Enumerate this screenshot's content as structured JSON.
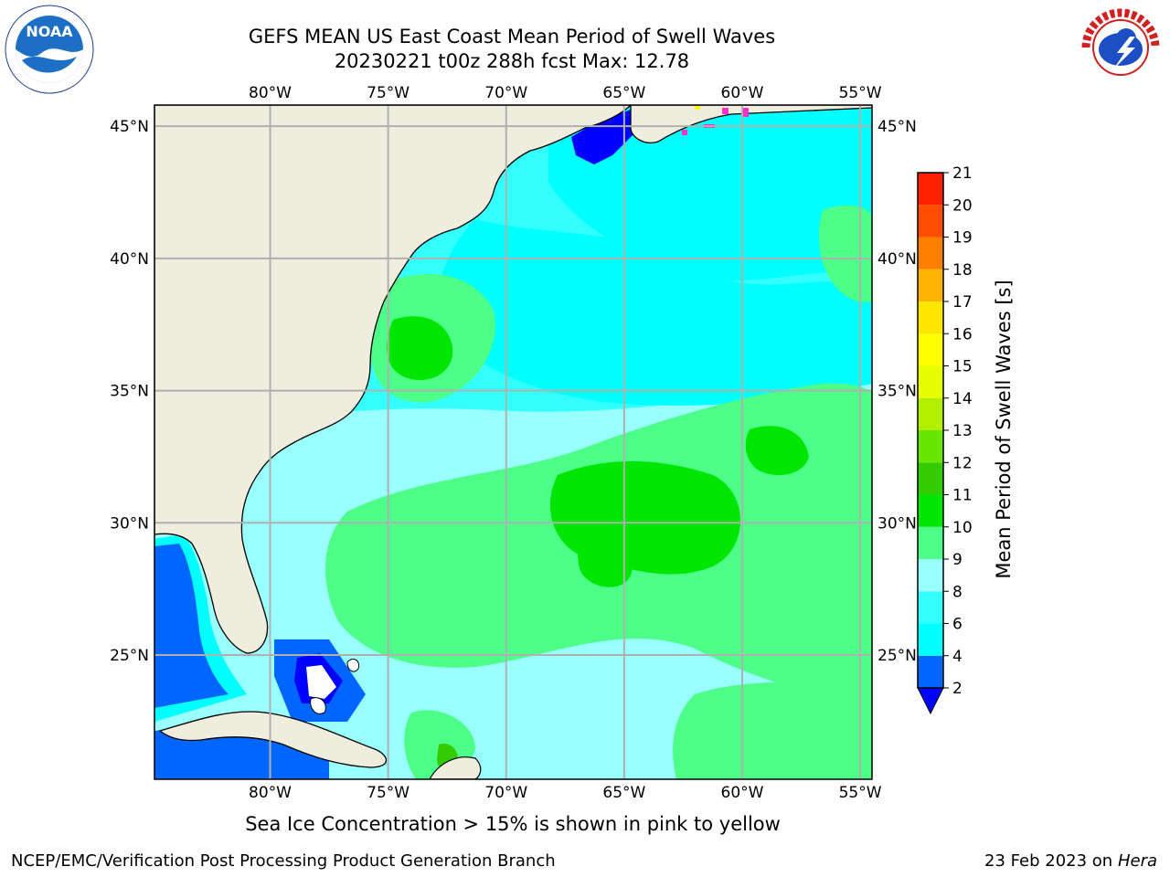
{
  "header": {
    "title_line1": "GEFS MEAN US East Coast Mean Period of Swell Waves",
    "title_line2": "20230221 t00z 288h fcst   Max: 12.78"
  },
  "logos": {
    "left": "NOAA",
    "left_ring_text": "NATIONAL OCEANIC AND ATMOSPHERIC ADMINISTRATION · U.S. DEPARTMENT OF COMMERCE",
    "right_ring_text": "NATIONAL WEATHER SERVICE"
  },
  "map": {
    "lon_labels": [
      "80°W",
      "75°W",
      "70°W",
      "65°W",
      "60°W",
      "55°W"
    ],
    "lat_labels": [
      "45°N",
      "40°N",
      "35°N",
      "30°N",
      "25°N"
    ],
    "extent": {
      "lon_min": -84.9,
      "lon_max": -54.5,
      "lat_min": 20.3,
      "lat_max": 45.8
    },
    "colors": {
      "land": "#efedde",
      "grid": "#b0b0b0",
      "coast": "#000000"
    }
  },
  "colorbar": {
    "label": "Mean Period of Swell Waves [s]",
    "ticks": [
      "2",
      "4",
      "6",
      "8",
      "9",
      "10",
      "11",
      "12",
      "13",
      "14",
      "15",
      "16",
      "17",
      "18",
      "19",
      "20",
      "21"
    ],
    "colors": [
      "#0066ff",
      "#00ffff",
      "#33ffff",
      "#99ffff",
      "#4dff88",
      "#00e600",
      "#33cc00",
      "#66e600",
      "#b3f000",
      "#e6ff00",
      "#ffff00",
      "#ffe600",
      "#ffb300",
      "#ff8000",
      "#ff4d00",
      "#ff2000",
      "#ff0000"
    ],
    "under_color": "#0000ff"
  },
  "caption": "Sea Ice Concentration > 15% is shown in pink to yellow",
  "footer": {
    "left": "NCEP/EMC/Verification Post Processing Product Generation Branch",
    "right_date": "23 Feb 2023 on",
    "right_host": "Hera"
  }
}
